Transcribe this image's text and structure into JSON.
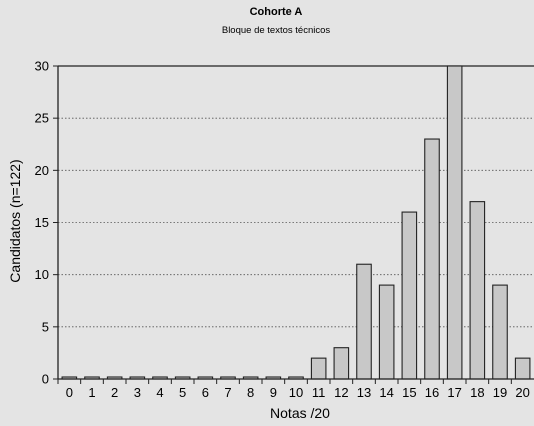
{
  "chart_data": {
    "type": "bar",
    "title": "Cohorte A",
    "subtitle": "Bloque de textos técnicos",
    "xlabel": "Notas /20",
    "ylabel": "Candidatos (n=122)",
    "categories": [
      "0",
      "1",
      "2",
      "3",
      "4",
      "5",
      "6",
      "7",
      "8",
      "9",
      "10",
      "11",
      "12",
      "13",
      "14",
      "15",
      "16",
      "17",
      "18",
      "19",
      "20"
    ],
    "values": [
      0,
      0,
      0,
      0,
      0,
      0,
      0,
      0,
      0,
      0,
      0,
      2,
      3,
      11,
      9,
      16,
      23,
      30,
      17,
      9,
      2
    ],
    "ylim": [
      0,
      30
    ],
    "yticks": [
      "0",
      "5",
      "10",
      "15",
      "20",
      "25",
      "30"
    ],
    "grid": "horizontal dotted",
    "colors": {
      "bar_fill": "#c8c8c8",
      "bar_stroke": "#222222",
      "background": "#e4e4e4"
    }
  }
}
